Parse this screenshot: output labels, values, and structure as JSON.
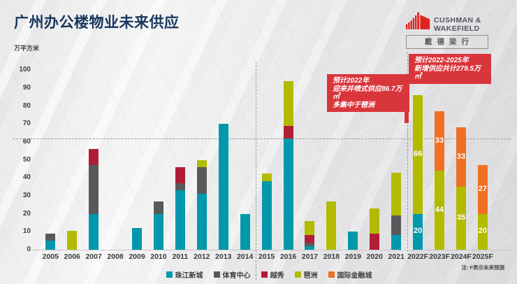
{
  "title": "广州办公楼物业未来供应",
  "unit_label": "万平方米",
  "note": "注: F表示未来预测",
  "logo": {
    "name_line1": "CUSHMAN &",
    "name_line2": "WAKEFIELD",
    "name_cn": "戴德梁行",
    "brand_red": "#e0231f",
    "brand_gray": "#53565a"
  },
  "callouts": [
    {
      "lines": [
        "预计2022年",
        "迎来井喷式供应86.7万㎡",
        "多集中于琶洲"
      ],
      "color": "#d9363c"
    },
    {
      "lines": [
        "预计2022-2025年",
        "新增供应共计279.5万㎡"
      ],
      "color": "#d9363c"
    }
  ],
  "chart_data": {
    "type": "bar",
    "variant": "stacked",
    "title": "广州办公楼物业未来供应",
    "ylabel": "万平方米",
    "ylim": [
      0,
      100
    ],
    "ytick_step": 10,
    "grid": "off",
    "reference_line_y": 62,
    "dividers_after": [
      "2014",
      "2021"
    ],
    "legend_position": "bottom",
    "series_order": [
      "珠江新城",
      "体育中心",
      "越秀",
      "琶洲",
      "国际金融城"
    ],
    "series_colors": {
      "珠江新城": "#0099ab",
      "体育中心": "#58595b",
      "越秀": "#b01e36",
      "琶洲": "#b2bb00",
      "国际金融城": "#f06f22"
    },
    "bars": [
      {
        "year": "2005",
        "segments": [
          {
            "name": "珠江新城",
            "value": 5
          },
          {
            "name": "体育中心",
            "value": 4
          }
        ]
      },
      {
        "year": "2006",
        "segments": [
          {
            "name": "琶洲",
            "value": 10.5
          }
        ]
      },
      {
        "year": "2007",
        "segments": [
          {
            "name": "珠江新城",
            "value": 20
          },
          {
            "name": "体育中心",
            "value": 27
          },
          {
            "name": "越秀",
            "value": 9
          }
        ]
      },
      {
        "year": "2008",
        "segments": []
      },
      {
        "year": "2009",
        "segments": [
          {
            "name": "珠江新城",
            "value": 12
          }
        ]
      },
      {
        "year": "2010",
        "segments": [
          {
            "name": "珠江新城",
            "value": 20
          },
          {
            "name": "体育中心",
            "value": 7
          }
        ]
      },
      {
        "year": "2011",
        "segments": [
          {
            "name": "珠江新城",
            "value": 33
          },
          {
            "name": "体育中心",
            "value": 4
          },
          {
            "name": "越秀",
            "value": 9
          }
        ]
      },
      {
        "year": "2012",
        "segments": [
          {
            "name": "珠江新城",
            "value": 31
          },
          {
            "name": "体育中心",
            "value": 15
          },
          {
            "name": "琶洲",
            "value": 4
          }
        ]
      },
      {
        "year": "2013",
        "segments": [
          {
            "name": "珠江新城",
            "value": 70
          }
        ]
      },
      {
        "year": "2014",
        "segments": [
          {
            "name": "珠江新城",
            "value": 20
          }
        ]
      },
      {
        "year": "2015",
        "segments": [
          {
            "name": "珠江新城",
            "value": 38
          },
          {
            "name": "琶洲",
            "value": 4.5
          }
        ]
      },
      {
        "year": "2016",
        "segments": [
          {
            "name": "珠江新城",
            "value": 62
          },
          {
            "name": "越秀",
            "value": 7
          },
          {
            "name": "琶洲",
            "value": 25
          }
        ]
      },
      {
        "year": "2017",
        "segments": [
          {
            "name": "珠江新城",
            "value": 2
          },
          {
            "name": "体育中心",
            "value": 2
          },
          {
            "name": "越秀",
            "value": 4
          },
          {
            "name": "琶洲",
            "value": 8
          }
        ]
      },
      {
        "year": "2018",
        "segments": [
          {
            "name": "琶洲",
            "value": 27
          }
        ]
      },
      {
        "year": "2019",
        "segments": [
          {
            "name": "珠江新城",
            "value": 10
          }
        ]
      },
      {
        "year": "2020",
        "segments": [
          {
            "name": "越秀",
            "value": 9
          },
          {
            "name": "琶洲",
            "value": 14
          }
        ]
      },
      {
        "year": "2021",
        "segments": [
          {
            "name": "珠江新城",
            "value": 8
          },
          {
            "name": "体育中心",
            "value": 11
          },
          {
            "name": "琶洲",
            "value": 24
          }
        ]
      },
      {
        "year": "2022F",
        "segments": [
          {
            "name": "珠江新城",
            "value": 20,
            "label": "20"
          },
          {
            "name": "琶洲",
            "value": 66,
            "label": "66"
          }
        ]
      },
      {
        "year": "2023F",
        "segments": [
          {
            "name": "琶洲",
            "value": 44,
            "label": "44"
          },
          {
            "name": "国际金融城",
            "value": 33,
            "label": "33"
          }
        ]
      },
      {
        "year": "2024F",
        "segments": [
          {
            "name": "琶洲",
            "value": 35,
            "label": "35"
          },
          {
            "name": "国际金融城",
            "value": 33,
            "label": "33"
          }
        ]
      },
      {
        "year": "2025F",
        "segments": [
          {
            "name": "琶洲",
            "value": 20,
            "label": "20"
          },
          {
            "name": "国际金融城",
            "value": 27,
            "label": "27"
          }
        ]
      }
    ]
  }
}
